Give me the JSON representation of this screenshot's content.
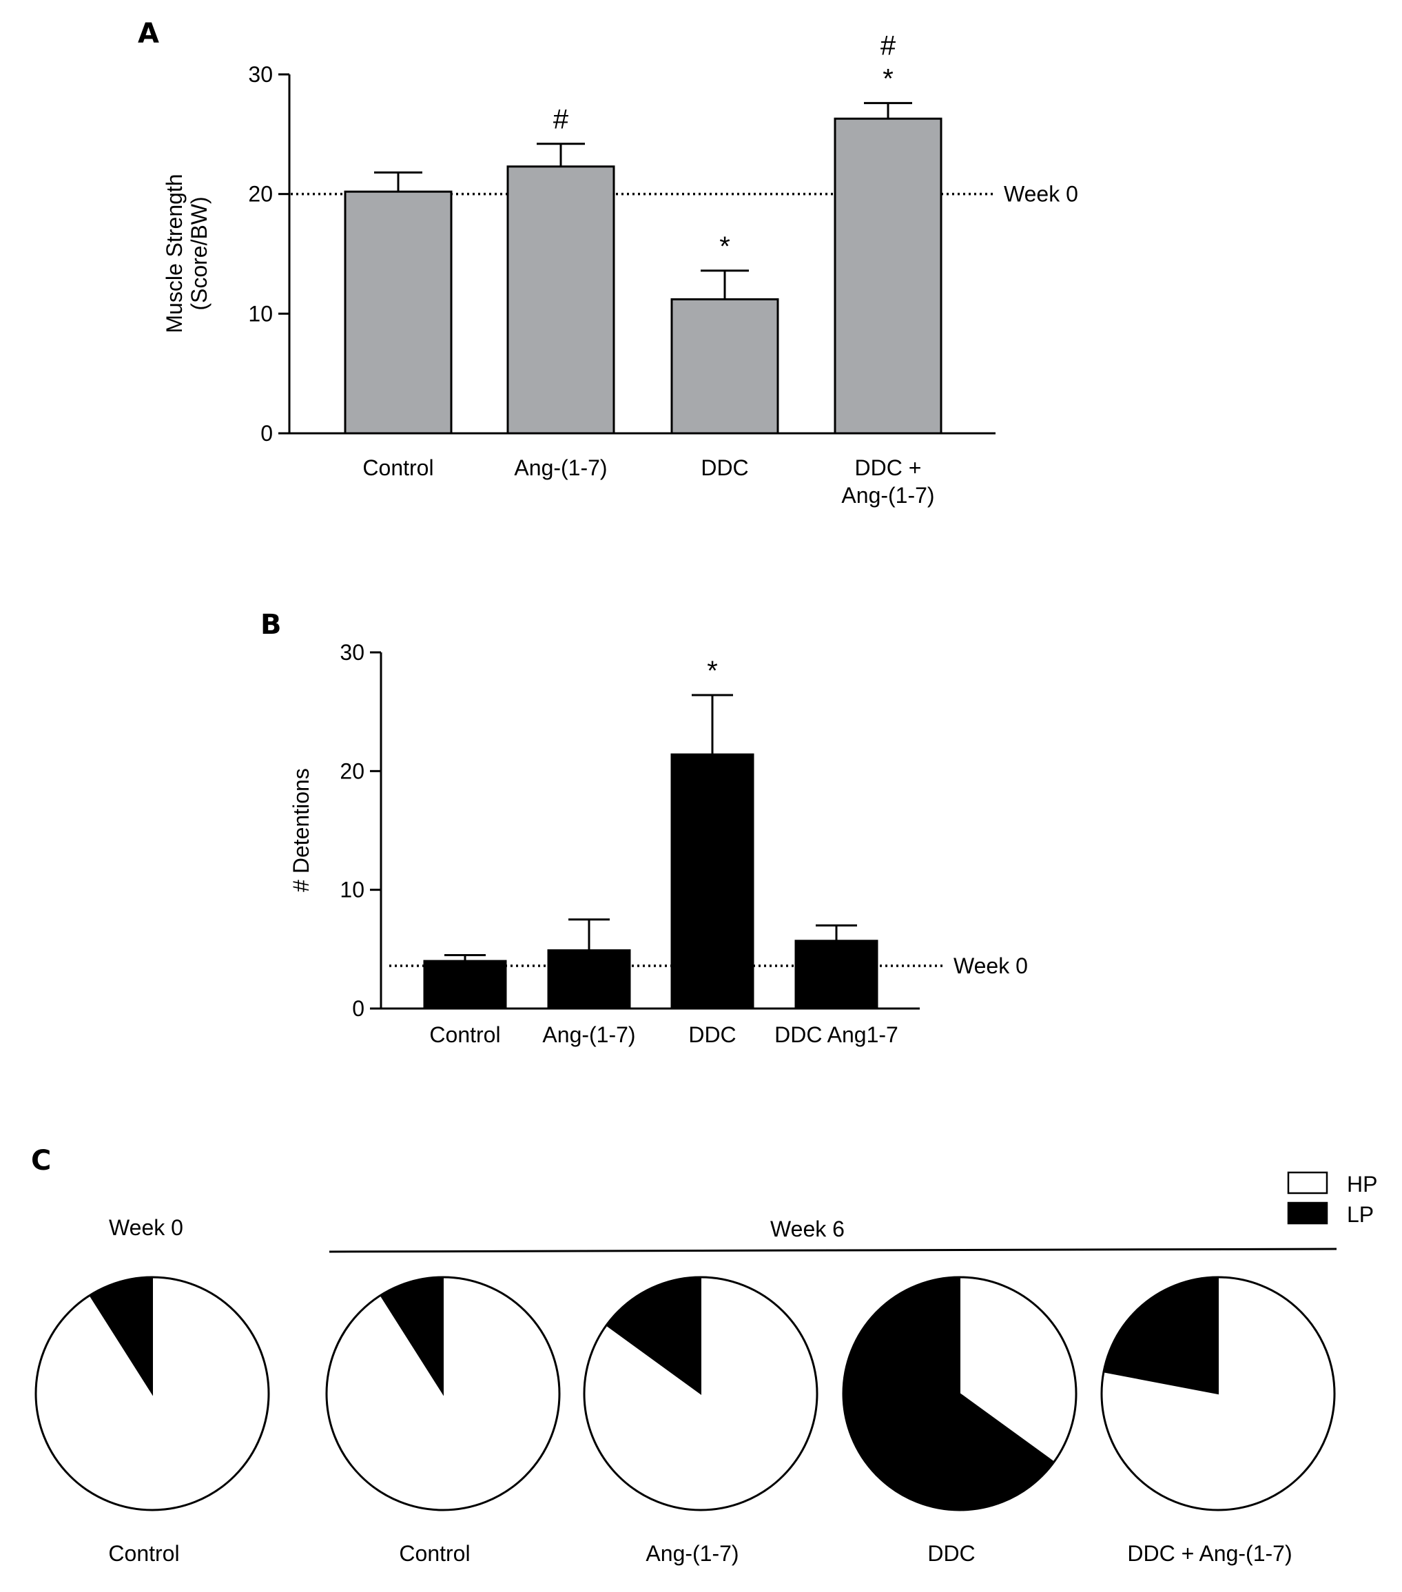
{
  "chart_data": [
    {
      "id": "A",
      "panel_label": "A",
      "type": "bar",
      "categories": [
        [
          "Control"
        ],
        [
          "Ang-(1-7)"
        ],
        [
          "DDC"
        ],
        [
          "DDC +",
          "Ang-(1-7)"
        ]
      ],
      "values": [
        20.2,
        22.3,
        11.2,
        26.3
      ],
      "errors": [
        1.6,
        1.9,
        2.4,
        1.3
      ],
      "annotations": [
        [],
        [
          "#"
        ],
        [
          "*"
        ],
        [
          "*",
          "#"
        ]
      ],
      "ylabel": [
        "Muscle Strength",
        "(Score/BW)"
      ],
      "ylim": [
        0,
        30
      ],
      "yticks": [
        0,
        10,
        20,
        30
      ],
      "reference_line": {
        "value": 20,
        "label": "Week 0"
      },
      "bar_color": "#a7a9ac"
    },
    {
      "id": "B",
      "panel_label": "B",
      "type": "bar",
      "categories": [
        [
          "Control"
        ],
        [
          "Ang-(1-7)"
        ],
        [
          "DDC"
        ],
        [
          "DDC Ang1-7"
        ]
      ],
      "values": [
        4.0,
        4.9,
        21.4,
        5.7
      ],
      "errors": [
        0.5,
        2.6,
        5.0,
        1.3
      ],
      "annotations": [
        [],
        [],
        [
          "*"
        ],
        []
      ],
      "ylabel": [
        "# Detentions"
      ],
      "ylim": [
        0,
        30
      ],
      "yticks": [
        0,
        10,
        20,
        30
      ],
      "reference_line": {
        "value": 3.6,
        "label": "Week 0"
      },
      "bar_color": "#000000"
    },
    {
      "id": "C",
      "panel_label": "C",
      "type": "pie",
      "legend": [
        {
          "name": "HP",
          "color": "#ffffff"
        },
        {
          "name": "LP",
          "color": "#000000"
        }
      ],
      "group_labels": {
        "week0": "Week 0",
        "week6": "Week 6"
      },
      "pies": [
        {
          "label": "Control",
          "group": "Week 0",
          "HP": 91,
          "LP": 9
        },
        {
          "label": "Control",
          "group": "Week 6",
          "HP": 91,
          "LP": 9
        },
        {
          "label": "Ang-(1-7)",
          "group": "Week 6",
          "HP": 85,
          "LP": 15
        },
        {
          "label": "DDC",
          "group": "Week 6",
          "HP": 35,
          "LP": 65
        },
        {
          "label": "DDC + Ang-(1-7)",
          "group": "Week 6",
          "HP": 78,
          "LP": 22
        }
      ]
    }
  ]
}
